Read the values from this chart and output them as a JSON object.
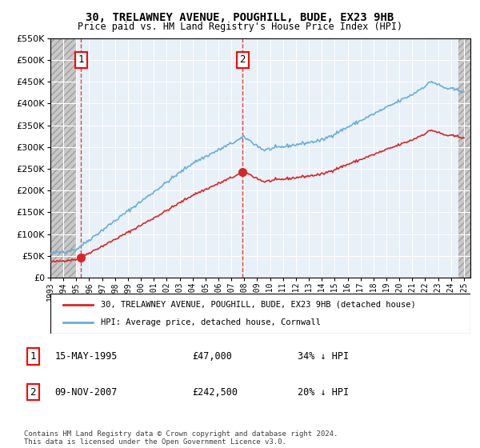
{
  "title1": "30, TRELAWNEY AVENUE, POUGHILL, BUDE, EX23 9HB",
  "title2": "Price paid vs. HM Land Registry's House Price Index (HPI)",
  "xlim_start": 1993.0,
  "xlim_end": 2025.5,
  "ylim_min": 0,
  "ylim_max": 550000,
  "sale1_date": 1995.37,
  "sale1_price": 47000,
  "sale1_label": "1",
  "sale2_date": 2007.86,
  "sale2_price": 242500,
  "sale2_label": "2",
  "legend_line1": "30, TRELAWNEY AVENUE, POUGHILL, BUDE, EX23 9HB (detached house)",
  "legend_line2": "HPI: Average price, detached house, Cornwall",
  "table_row1": [
    "1",
    "15-MAY-1995",
    "£47,000",
    "34% ↓ HPI"
  ],
  "table_row2": [
    "2",
    "09-NOV-2007",
    "£242,500",
    "20% ↓ HPI"
  ],
  "footer": "Contains HM Land Registry data © Crown copyright and database right 2024.\nThis data is licensed under the Open Government Licence v3.0.",
  "hpi_color": "#6baed6",
  "price_color": "#d62728",
  "bg_plot_color": "#e8f0f8",
  "hatch_color": "#c8c8c8",
  "grid_color": "#ffffff",
  "tick_years": [
    1993,
    1994,
    1995,
    1996,
    1997,
    1998,
    1999,
    2000,
    2001,
    2002,
    2003,
    2004,
    2005,
    2006,
    2007,
    2008,
    2009,
    2010,
    2011,
    2012,
    2013,
    2014,
    2015,
    2016,
    2017,
    2018,
    2019,
    2020,
    2021,
    2022,
    2023,
    2024,
    2025
  ],
  "yticks": [
    0,
    50000,
    100000,
    150000,
    200000,
    250000,
    300000,
    350000,
    400000,
    450000,
    500000,
    550000
  ]
}
